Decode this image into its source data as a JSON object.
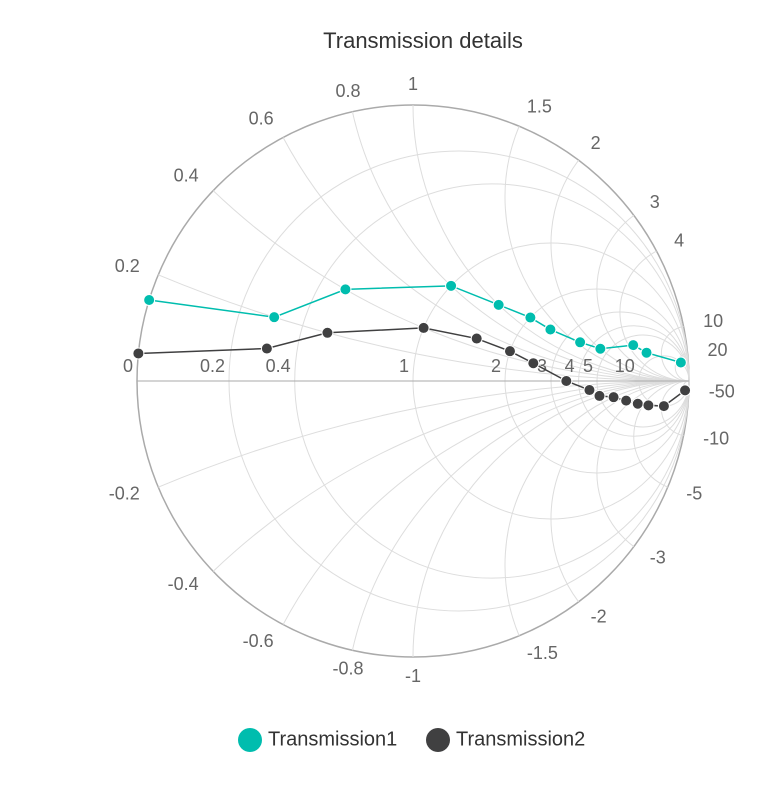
{
  "chart_data": {
    "type": "smith",
    "title": "Transmission details",
    "resistance_ticks": [
      0,
      0.2,
      0.4,
      1,
      2,
      3,
      4,
      5,
      10
    ],
    "reactance_ticks": [
      0.2,
      0.4,
      0.6,
      0.8,
      1,
      1.5,
      2,
      3,
      4,
      10,
      20,
      -0.2,
      -0.4,
      -0.6,
      -0.8,
      -1,
      -1.5,
      -2,
      -3,
      -5,
      -10,
      -50
    ],
    "grid": true,
    "series": [
      {
        "name": "Transmission1",
        "color": "#00bdae",
        "resistance": [
          0,
          0.3,
          0.5,
          1,
          1.5,
          2,
          2.5,
          3.5,
          4.5,
          6,
          8,
          10
        ],
        "reactance": [
          0.15,
          0.2,
          0.4,
          0.8,
          1,
          1.2,
          1.3,
          1.6,
          2,
          4.5,
          6,
          25
        ]
      },
      {
        "name": "Transmission2",
        "color": "#404041",
        "resistance": [
          0,
          0.3,
          0.5,
          1,
          1.5,
          2,
          2.5,
          3.5,
          4.5,
          5,
          6,
          7,
          8,
          9,
          10,
          20
        ],
        "reactance": [
          0.05,
          0.1,
          0.2,
          0.4,
          0.5,
          0.5,
          0.4,
          0,
          -0.5,
          -1,
          -1.5,
          -2.5,
          -4,
          -6,
          -11,
          -50
        ]
      }
    ]
  }
}
